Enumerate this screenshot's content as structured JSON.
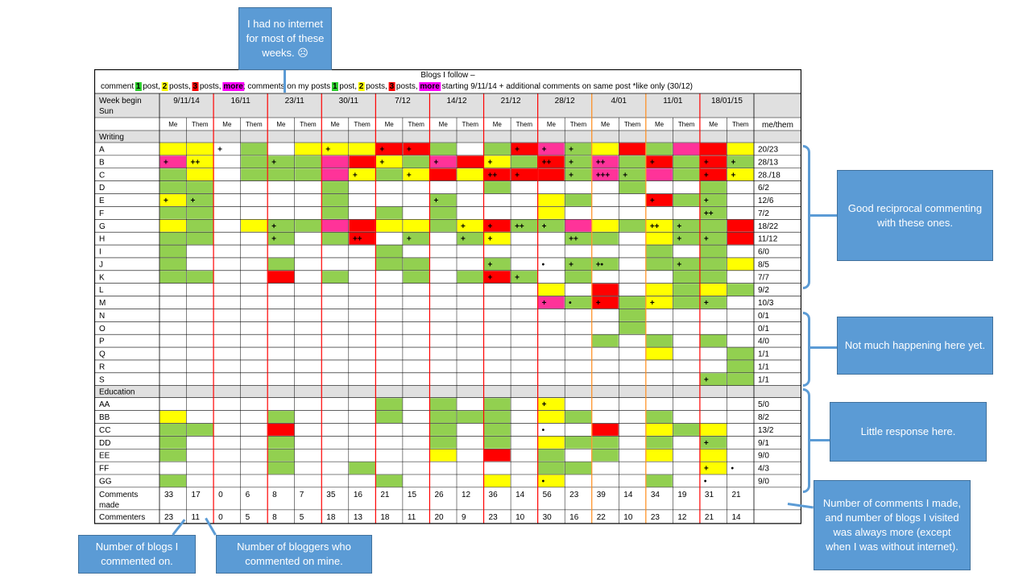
{
  "chart_data": {
    "type": "table",
    "title": "Blogs I follow –",
    "legend": {
      "lead": "comment ",
      "items": [
        {
          "text": "1",
          "color": "#2ed02e"
        },
        {
          "text": " post, ",
          "color": null
        },
        {
          "text": "2",
          "color": "#ffff00"
        },
        {
          "text": " posts, ",
          "color": null
        },
        {
          "text": "3",
          "color": "#ff0000"
        },
        {
          "text": " posts, ",
          "color": null
        },
        {
          "text": "more",
          "color": "#ff00ff"
        },
        {
          "text": "; comments on my posts ",
          "color": null
        },
        {
          "text": "1",
          "color": "#2ed02e"
        },
        {
          "text": " post, ",
          "color": null
        },
        {
          "text": "2",
          "color": "#ffff00"
        },
        {
          "text": " posts, ",
          "color": null
        },
        {
          "text": "3",
          "color": "#ff0000"
        },
        {
          "text": " posts, ",
          "color": null
        },
        {
          "text": "more",
          "color": "#ff00ff"
        }
      ],
      "tail": "    starting 9/11/14    + additional comments on same post *like only (30/12)"
    },
    "week_header": "Week begin Sun",
    "weeks": [
      "9/11/14",
      "16/11",
      "23/11",
      "30/11",
      "7/12",
      "14/12",
      "21/12",
      "28/12",
      "4/01",
      "11/01",
      "18/01/15"
    ],
    "sub_me": "Me",
    "sub_them": "Them",
    "total_header": "me/them",
    "color_map": {
      "g": "#92d050",
      "y": "#ffff00",
      "r": "#ff0000",
      "p": "#ff3399"
    },
    "sections": [
      {
        "name": "Writing",
        "rows": [
          {
            "label": "A",
            "total": "20/23",
            "cells": [
              "y",
              "y",
              "",
              "g",
              "",
              "y",
              "y",
              "y",
              "r",
              "r",
              "g",
              "",
              "g",
              "r",
              "p",
              "g",
              "y",
              "r",
              "g",
              "p",
              "r",
              "y"
            ],
            "marks": {
              "2": "+",
              "6": "+",
              "8": "+",
              "9": "+",
              "13": "+",
              "14": "+",
              "15": "+"
            }
          },
          {
            "label": "B",
            "total": "28/13",
            "cells": [
              "p",
              "y",
              "",
              "g",
              "g",
              "g",
              "p",
              "r",
              "y",
              "g",
              "p",
              "r",
              "y",
              "g",
              "r",
              "g",
              "p",
              "g",
              "r",
              "g",
              "r",
              "g"
            ],
            "marks": {
              "0": "+",
              "1": "++",
              "4": "+",
              "8": "+",
              "10": "+",
              "12": "+",
              "14": "++",
              "15": "+",
              "16": "++",
              "18": "+",
              "20": "+",
              "21": "+"
            }
          },
          {
            "label": "C",
            "total": "28./18",
            "cells": [
              "g",
              "y",
              "",
              "g",
              "g",
              "g",
              "p",
              "y",
              "g",
              "y",
              "r",
              "y",
              "r",
              "r",
              "r",
              "g",
              "p",
              "g",
              "p",
              "g",
              "r",
              "y"
            ],
            "marks": {
              "7": "+",
              "9": "+",
              "12": "++",
              "13": "+",
              "15": "+",
              "16": "+++",
              "17": "+",
              "20": "+",
              "21": "+"
            }
          },
          {
            "label": "D",
            "total": "6/2",
            "cells": [
              "g",
              "g",
              "",
              "",
              "",
              "",
              "g",
              "",
              "",
              "",
              "",
              "",
              "g",
              "",
              "",
              "",
              "",
              "g",
              "",
              "",
              "g",
              ""
            ],
            "marks": {}
          },
          {
            "label": "E",
            "total": "12/6",
            "cells": [
              "y",
              "g",
              "",
              "",
              "",
              "",
              "g",
              "",
              "",
              "",
              "g",
              "",
              "",
              "",
              "y",
              "g",
              "",
              "",
              "r",
              "g",
              "g",
              ""
            ],
            "marks": {
              "0": "+",
              "1": "+",
              "10": "+",
              "18": "+",
              "20": "+"
            }
          },
          {
            "label": "F",
            "total": "7/2",
            "cells": [
              "g",
              "g",
              "",
              "",
              "",
              "",
              "g",
              "",
              "g",
              "",
              "g",
              "",
              "",
              "",
              "y",
              "",
              "",
              "",
              "",
              "",
              "g",
              ""
            ],
            "marks": {
              "20": "++"
            }
          },
          {
            "label": "G",
            "total": "18/22",
            "cells": [
              "y",
              "g",
              "",
              "y",
              "g",
              "g",
              "p",
              "r",
              "y",
              "y",
              "g",
              "y",
              "r",
              "g",
              "g",
              "p",
              "y",
              "g",
              "y",
              "g",
              "g",
              "r"
            ],
            "marks": {
              "4": "+",
              "11": "+",
              "12": "+",
              "13": "++",
              "14": "+",
              "18": "++",
              "19": "+"
            }
          },
          {
            "label": "H",
            "total": "11/12",
            "cells": [
              "g",
              "g",
              "",
              "",
              "g",
              "",
              "g",
              "r",
              "",
              "g",
              "",
              "g",
              "y",
              "",
              "",
              "g",
              "g",
              "",
              "y",
              "g",
              "g",
              "r"
            ],
            "marks": {
              "4": "+",
              "7": "++",
              "9": "+",
              "11": "+",
              "12": "+",
              "15": "++",
              "19": "+",
              "20": "+"
            }
          },
          {
            "label": "I",
            "total": "6/0",
            "cells": [
              "g",
              "",
              "",
              "",
              "",
              "",
              "",
              "",
              "g",
              "",
              "",
              "",
              "",
              "",
              "",
              "",
              "",
              "",
              "g",
              "",
              "g",
              ""
            ],
            "marks": {}
          },
          {
            "label": "J",
            "total": "8/5",
            "cells": [
              "g",
              "",
              "",
              "",
              "g",
              "",
              "",
              "",
              "g",
              "g",
              "",
              "",
              "g",
              "",
              "",
              "g",
              "g",
              "",
              "g",
              "g",
              "g",
              "y"
            ],
            "marks": {
              "12": "+",
              "14": "•",
              "15": "+",
              "16": "+•",
              "19": "+"
            }
          },
          {
            "label": "K",
            "total": "7/7",
            "cells": [
              "g",
              "g",
              "",
              "",
              "r",
              "",
              "g",
              "",
              "",
              "g",
              "",
              "g",
              "r",
              "g",
              "",
              "g",
              "",
              "",
              "",
              "g",
              "g",
              ""
            ],
            "marks": {
              "12": "+",
              "13": "+"
            }
          },
          {
            "label": "L",
            "total": "9/2",
            "cells": [
              "",
              "",
              "",
              "",
              "",
              "",
              "",
              "",
              "",
              "",
              "",
              "",
              "",
              "",
              "y",
              "",
              "r",
              "",
              "y",
              "g",
              "y",
              "g"
            ],
            "marks": {}
          },
          {
            "label": "M",
            "total": "10/3",
            "cells": [
              "",
              "",
              "",
              "",
              "",
              "",
              "",
              "",
              "",
              "",
              "",
              "",
              "",
              "",
              "p",
              "g",
              "r",
              "g",
              "y",
              "g",
              "g",
              ""
            ],
            "marks": {
              "14": "+",
              "15": "•",
              "16": "+",
              "18": "+",
              "20": "+"
            }
          },
          {
            "label": "N",
            "total": "0/1",
            "cells": [
              "",
              "",
              "",
              "",
              "",
              "",
              "",
              "",
              "",
              "",
              "",
              "",
              "",
              "",
              "",
              "",
              "",
              "g",
              "",
              "",
              "",
              ""
            ],
            "marks": {}
          },
          {
            "label": "O",
            "total": "0/1",
            "cells": [
              "",
              "",
              "",
              "",
              "",
              "",
              "",
              "",
              "",
              "",
              "",
              "",
              "",
              "",
              "",
              "",
              "",
              "g",
              "",
              "",
              "",
              ""
            ],
            "marks": {}
          },
          {
            "label": "P",
            "total": "4/0",
            "cells": [
              "",
              "",
              "",
              "",
              "",
              "",
              "",
              "",
              "",
              "",
              "",
              "",
              "",
              "",
              "",
              "",
              "g",
              "",
              "g",
              "",
              "g",
              ""
            ],
            "marks": {}
          },
          {
            "label": "Q",
            "total": "1/1",
            "cells": [
              "",
              "",
              "",
              "",
              "",
              "",
              "",
              "",
              "",
              "",
              "",
              "",
              "",
              "",
              "",
              "",
              "",
              "",
              "y",
              "",
              "",
              "g"
            ],
            "marks": {}
          },
          {
            "label": "R",
            "total": "1/1",
            "cells": [
              "",
              "",
              "",
              "",
              "",
              "",
              "",
              "",
              "",
              "",
              "",
              "",
              "",
              "",
              "",
              "",
              "",
              "",
              "",
              "",
              "",
              "g"
            ],
            "marks": {}
          },
          {
            "label": "S",
            "total": "1/1",
            "cells": [
              "",
              "",
              "",
              "",
              "",
              "",
              "",
              "",
              "",
              "",
              "",
              "",
              "",
              "",
              "",
              "",
              "",
              "",
              "",
              "",
              "g",
              "g"
            ],
            "marks": {
              "20": "+"
            }
          }
        ]
      },
      {
        "name": "Education",
        "rows": [
          {
            "label": "AA",
            "total": "5/0",
            "cells": [
              "",
              "",
              "",
              "",
              "",
              "",
              "",
              "",
              "g",
              "",
              "g",
              "",
              "g",
              "",
              "y",
              "",
              "",
              "",
              "",
              "",
              "",
              ""
            ],
            "marks": {
              "14": "+"
            }
          },
          {
            "label": "BB",
            "total": "8/2",
            "cells": [
              "y",
              "",
              "",
              "",
              "g",
              "",
              "",
              "",
              "g",
              "",
              "g",
              "g",
              "g",
              "",
              "y",
              "g",
              "",
              "",
              "g",
              "",
              "",
              ""
            ],
            "marks": {}
          },
          {
            "label": "CC",
            "total": "13/2",
            "cells": [
              "g",
              "g",
              "",
              "",
              "r",
              "",
              "",
              "",
              "",
              "",
              "g",
              "",
              "g",
              "",
              "",
              "",
              "r",
              "",
              "y",
              "g",
              "y",
              ""
            ],
            "marks": {
              "14": "•"
            }
          },
          {
            "label": "DD",
            "total": "9/1",
            "cells": [
              "g",
              "",
              "",
              "",
              "g",
              "",
              "",
              "",
              "",
              "",
              "g",
              "",
              "g",
              "",
              "y",
              "g",
              "g",
              "",
              "g",
              "",
              "g",
              ""
            ],
            "marks": {
              "20": "+"
            }
          },
          {
            "label": "EE",
            "total": "9/0",
            "cells": [
              "g",
              "",
              "",
              "",
              "g",
              "",
              "",
              "",
              "",
              "",
              "y",
              "",
              "r",
              "",
              "g",
              "",
              "g",
              "",
              "y",
              "",
              "y",
              ""
            ],
            "marks": {}
          },
          {
            "label": "FF",
            "total": "4/3",
            "cells": [
              "",
              "",
              "",
              "",
              "g",
              "",
              "",
              "g",
              "",
              "",
              "",
              "",
              "",
              "",
              "g",
              "g",
              "",
              "",
              "",
              "",
              "y",
              ""
            ],
            "marks": {
              "20": "+",
              "21": "•"
            }
          },
          {
            "label": "GG",
            "total": "9/0",
            "cells": [
              "g",
              "",
              "",
              "",
              "",
              "",
              "",
              "",
              "g",
              "",
              "",
              "",
              "y",
              "",
              "y",
              "",
              "",
              "",
              "g",
              "",
              "",
              ""
            ],
            "marks": {
              "14": "•",
              "20": "•"
            }
          }
        ]
      }
    ],
    "comments_made": {
      "label": "Comments made",
      "values": [
        "33",
        "17",
        "0",
        "6",
        "8",
        "7",
        "35",
        "16",
        "21",
        "15",
        "26",
        "12",
        "36",
        "14",
        "56",
        "23",
        "39",
        "14",
        "34",
        "19",
        "31",
        "21"
      ]
    },
    "commenters": {
      "label": "Commenters",
      "values": [
        "23",
        "11",
        "0",
        "5",
        "8",
        "5",
        "18",
        "13",
        "18",
        "11",
        "20",
        "9",
        "23",
        "10",
        "30",
        "16",
        "22",
        "10",
        "23",
        "12",
        "21",
        "14"
      ]
    }
  },
  "callouts": {
    "no_internet": "I had no internet for most of these weeks. ☹",
    "good_reciprocal": "Good reciprocal commenting with these ones.",
    "not_much": "Not much happening here yet.",
    "little_response": "Little response here.",
    "num_comments": "Number of comments I made, and number of blogs I visited was always more (except when I was without internet).",
    "num_blogs": "Number of blogs I commented on.",
    "num_bloggers": "Number of bloggers who commented on mine."
  },
  "colors": {
    "accent": "#5b9bd5",
    "header_grey": "#e0e0e0",
    "red_line": "#ff0000",
    "orange_line": "#ff8c1a"
  }
}
